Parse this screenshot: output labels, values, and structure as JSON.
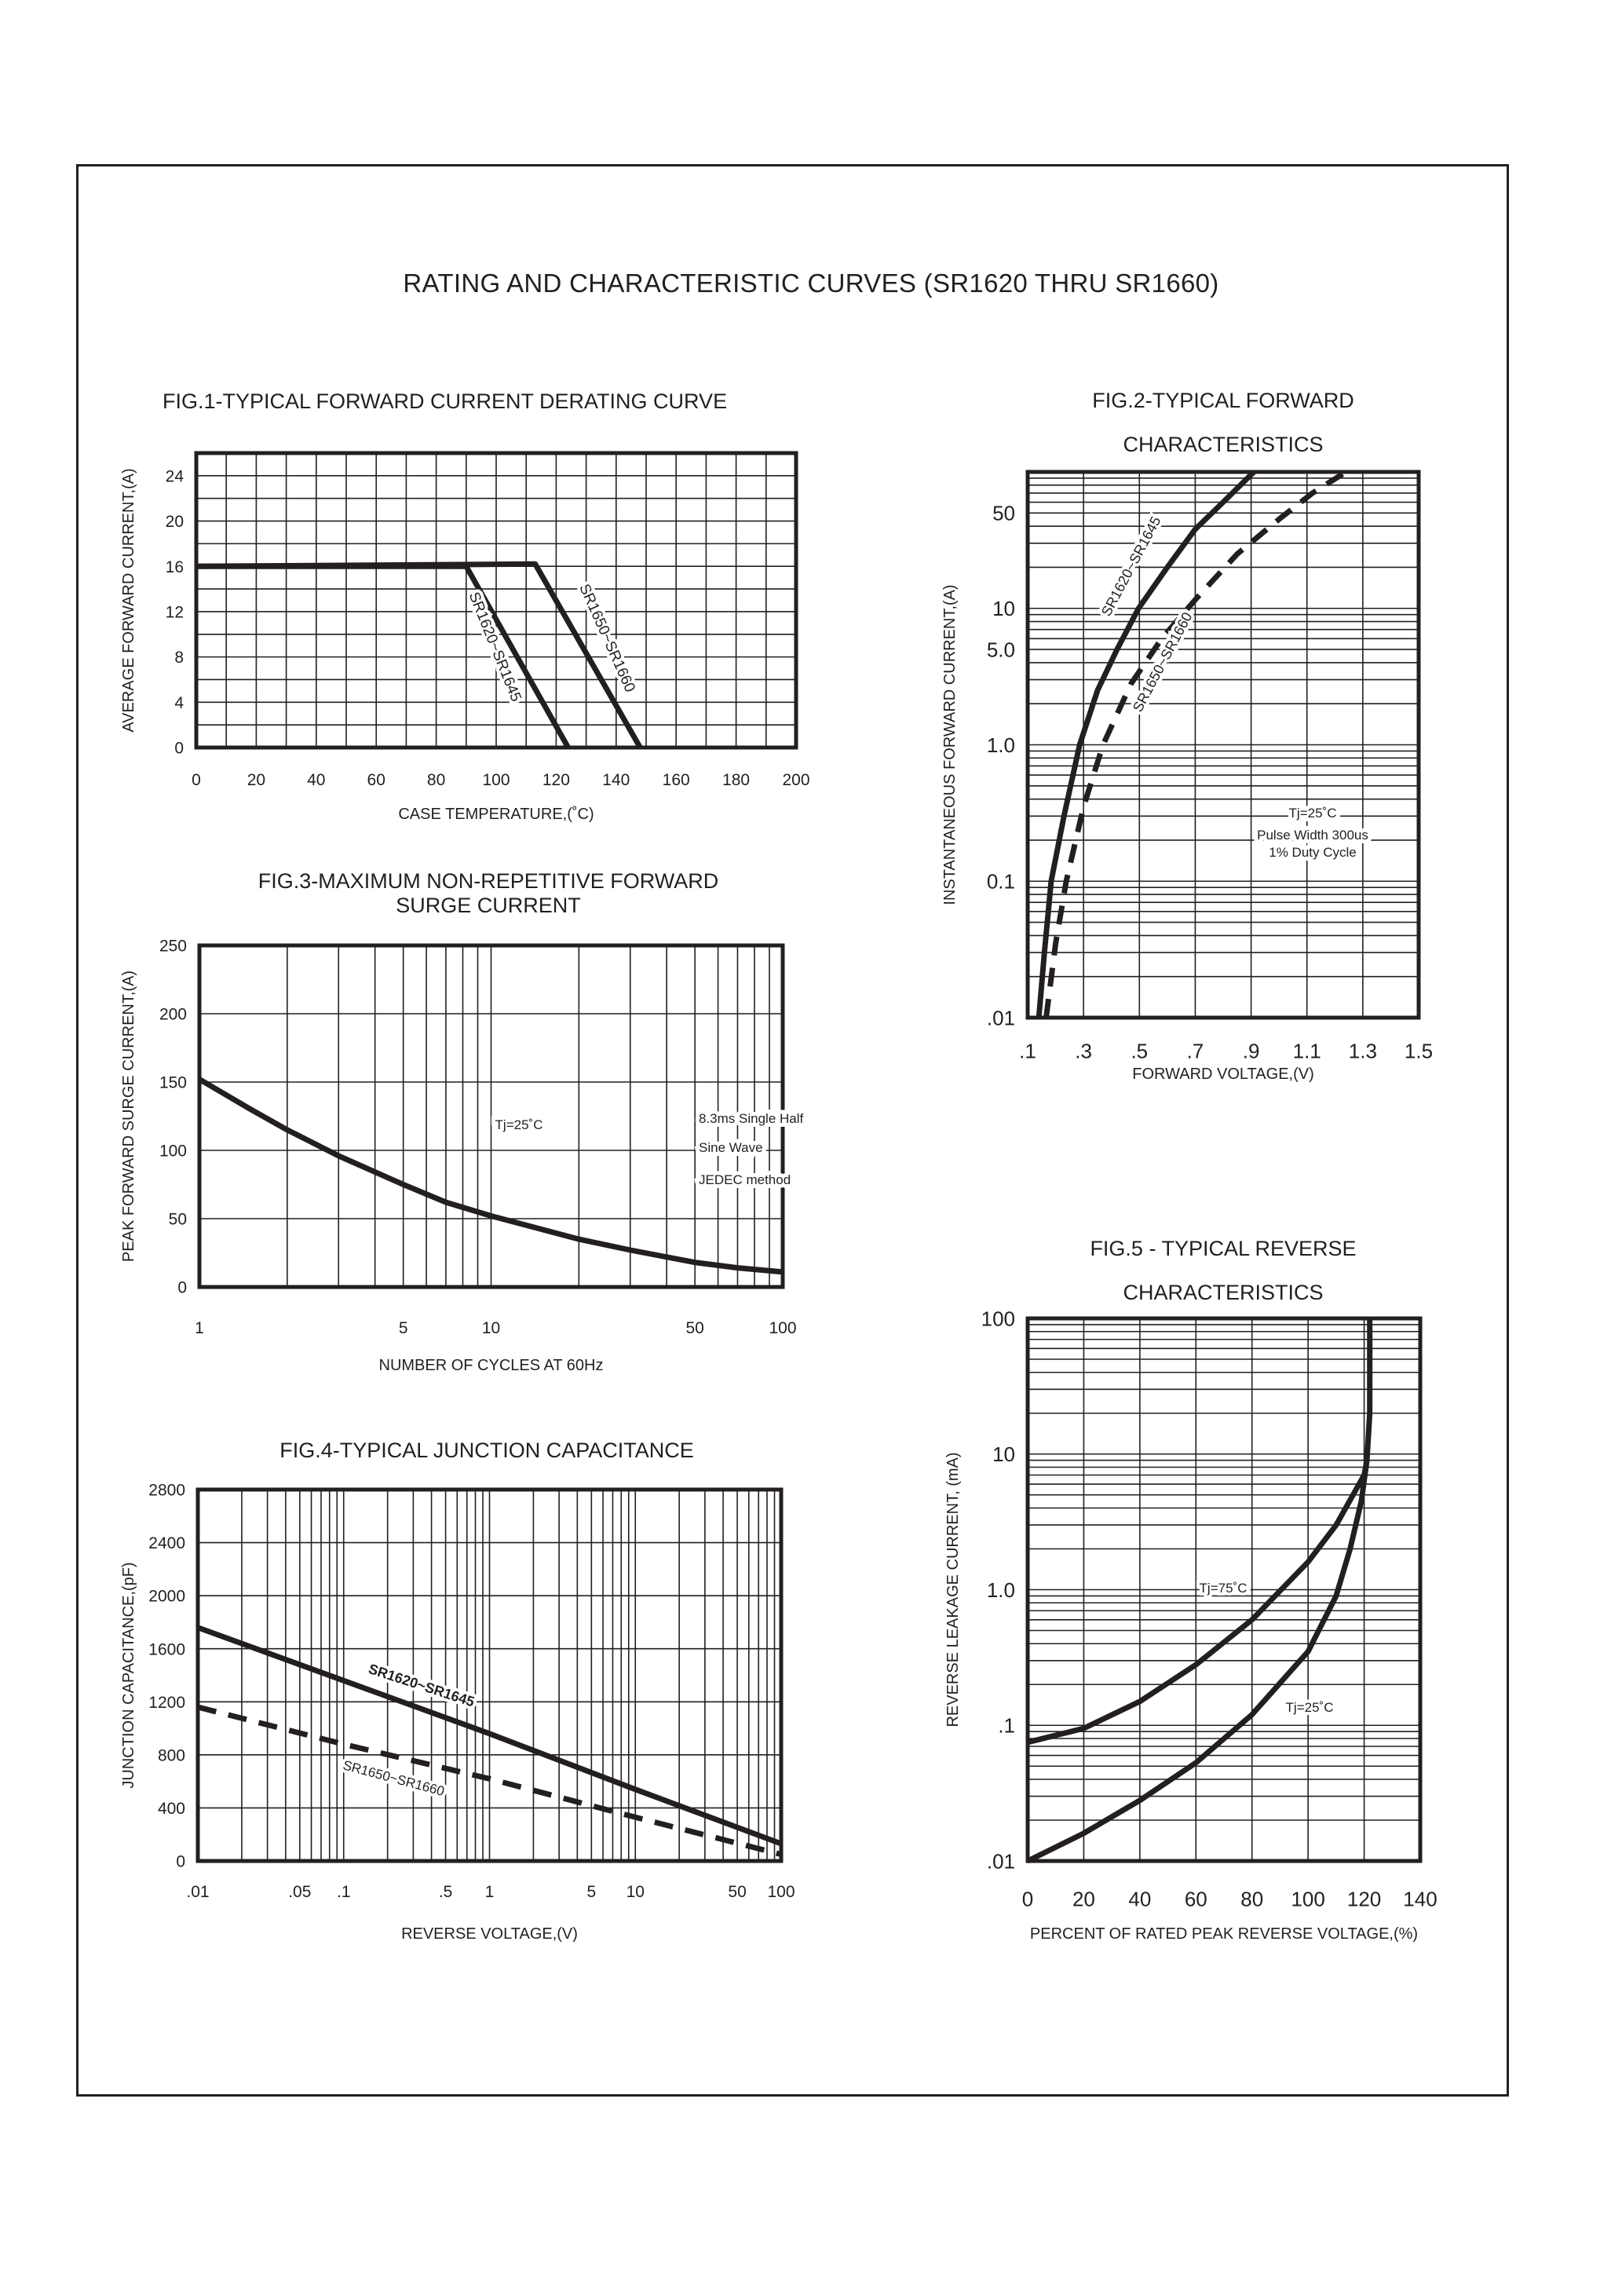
{
  "page_title": "RATING AND CHARACTERISTIC CURVES (SR1620 THRU SR1660)",
  "chart_data": [
    {
      "type": "line",
      "title": [
        "FIG.1-TYPICAL FORWARD CURRENT DERATING CURVE"
      ],
      "xlabel": "CASE  TEMPERATURE,(˚C)",
      "ylabel": "AVERAGE FORWARD CURRENT,(A)",
      "xscale": "linear",
      "yscale": "linear",
      "xlim": [
        0,
        200
      ],
      "ylim": [
        0,
        26
      ],
      "grid": true,
      "x_ticks": [
        0,
        20,
        40,
        60,
        80,
        100,
        120,
        140,
        160,
        180,
        200
      ],
      "x_tick_labels": [
        "0",
        "20",
        "40",
        "60",
        "80",
        "100",
        "120",
        "140",
        "160",
        "180",
        "200"
      ],
      "y_ticks": [
        0,
        4,
        8,
        12,
        16,
        20,
        24
      ],
      "y_tick_labels": [
        "0",
        "4",
        "8",
        "12",
        "16",
        "20",
        "24"
      ],
      "series": [
        {
          "name": "SR1620~SR1645",
          "style": "solid",
          "points": [
            [
              0,
              16
            ],
            [
              90,
              16
            ],
            [
              124,
              0
            ]
          ]
        },
        {
          "name": "SR1650~SR1660",
          "style": "solid",
          "points": [
            [
              0,
              16
            ],
            [
              113,
              16.2
            ],
            [
              148,
              0
            ]
          ]
        }
      ],
      "annotations": []
    },
    {
      "type": "line",
      "title": [
        "FIG.2-TYPICAL FORWARD",
        "CHARACTERISTICS"
      ],
      "xlabel": "FORWARD VOLTAGE,(V)",
      "ylabel": "INSTANTANEOUS FORWARD CURRENT,(A)",
      "xscale": "linear",
      "yscale": "log",
      "xlim": [
        0.1,
        1.5
      ],
      "ylim": [
        0.01,
        100
      ],
      "grid": true,
      "x_ticks": [
        0.1,
        0.3,
        0.5,
        0.7,
        0.9,
        1.1,
        1.3,
        1.5
      ],
      "x_tick_labels": [
        ".1",
        ".3",
        ".5",
        ".7",
        ".9",
        "1.1",
        "1.3",
        "1.5"
      ],
      "y_ticks": [
        0.01,
        0.1,
        1,
        5,
        10,
        50
      ],
      "y_tick_labels": [
        ".01",
        "0.1",
        "1.0",
        "5.0",
        "10",
        "50"
      ],
      "series": [
        {
          "name": "SR1620~SR1645",
          "style": "solid",
          "points": [
            [
              0.14,
              0.01
            ],
            [
              0.16,
              0.03
            ],
            [
              0.184,
              0.1
            ],
            [
              0.23,
              0.3
            ],
            [
              0.286,
              1
            ],
            [
              0.35,
              2.5
            ],
            [
              0.42,
              5
            ],
            [
              0.497,
              10
            ],
            [
              0.6,
              20
            ],
            [
              0.7,
              38
            ],
            [
              0.8,
              60
            ],
            [
              0.91,
              100
            ]
          ]
        },
        {
          "name": "SR1650~SR1660",
          "style": "dashed",
          "points": [
            [
              0.166,
              0.01
            ],
            [
              0.2,
              0.035
            ],
            [
              0.238,
              0.1
            ],
            [
              0.3,
              0.35
            ],
            [
              0.37,
              1
            ],
            [
              0.47,
              2.8
            ],
            [
              0.58,
              6
            ],
            [
              0.707,
              12
            ],
            [
              0.85,
              25
            ],
            [
              1.0,
              45
            ],
            [
              1.12,
              70
            ],
            [
              1.24,
              100
            ]
          ]
        }
      ],
      "annotations": [
        "Tj=25˚C",
        "Pulse Width 300us",
        "1% Duty Cycle"
      ]
    },
    {
      "type": "line",
      "title": [
        "FIG.3-MAXIMUM NON-REPETITIVE FORWARD",
        "SURGE CURRENT"
      ],
      "xlabel": "NUMBER OF CYCLES AT 60Hz",
      "ylabel": "PEAK FORWARD SURGE CURRENT,(A)",
      "xscale": "log",
      "yscale": "linear",
      "xlim": [
        1,
        100
      ],
      "ylim": [
        0,
        250
      ],
      "grid": true,
      "x_ticks": [
        1,
        5,
        10,
        50,
        100
      ],
      "x_tick_labels": [
        "1",
        "5",
        "10",
        "50",
        "100"
      ],
      "y_ticks": [
        0,
        50,
        100,
        150,
        200,
        250
      ],
      "y_tick_labels": [
        "0",
        "50",
        "100",
        "150",
        "200",
        "250"
      ],
      "series": [
        {
          "style": "solid",
          "points": [
            [
              1,
              152
            ],
            [
              1.5,
              130
            ],
            [
              2,
              115
            ],
            [
              3,
              96
            ],
            [
              5,
              75
            ],
            [
              7,
              62
            ],
            [
              10,
              52
            ],
            [
              20,
              35
            ],
            [
              30,
              27
            ],
            [
              50,
              18
            ],
            [
              70,
              14
            ],
            [
              100,
              11
            ]
          ]
        }
      ],
      "annotations": [
        "Tj=25˚C",
        "8.3ms Single Half",
        "Sine Wave",
        "JEDEC method"
      ]
    },
    {
      "type": "line",
      "title": [
        "FIG.4-TYPICAL JUNCTION CAPACITANCE"
      ],
      "xlabel": "REVERSE VOLTAGE,(V)",
      "ylabel": "JUNCTION CAPACITANCE,(pF)",
      "xscale": "log",
      "yscale": "linear",
      "xlim": [
        0.01,
        100
      ],
      "ylim": [
        0,
        2800
      ],
      "grid": true,
      "x_ticks": [
        0.01,
        0.05,
        0.1,
        0.5,
        1,
        5,
        10,
        50,
        100
      ],
      "x_tick_labels": [
        ".01",
        ".05",
        ".1",
        ".5",
        "1",
        "5",
        "10",
        "50",
        "100"
      ],
      "y_ticks": [
        0,
        400,
        800,
        1200,
        1600,
        2000,
        2400,
        2800
      ],
      "y_tick_labels": [
        "0",
        "400",
        "800",
        "1200",
        "1600",
        "2000",
        "2400",
        "2800"
      ],
      "series": [
        {
          "name": "SR1620~SR1645",
          "style": "solid",
          "points": [
            [
              0.01,
              1760
            ],
            [
              0.1,
              1360
            ],
            [
              1,
              960
            ],
            [
              10,
              540
            ],
            [
              100,
              130
            ]
          ]
        },
        {
          "name": "SR1650~SR1660",
          "style": "dashed",
          "points": [
            [
              0.01,
              1160
            ],
            [
              0.1,
              880
            ],
            [
              1,
              620
            ],
            [
              10,
              330
            ],
            [
              100,
              50
            ]
          ]
        }
      ],
      "annotations": []
    },
    {
      "type": "line",
      "title": [
        "FIG.5 - TYPICAL REVERSE",
        "CHARACTERISTICS"
      ],
      "xlabel": "PERCENT OF RATED PEAK REVERSE VOLTAGE,(%)",
      "ylabel": "REVERSE LEAKAGE CURRENT, (mA)",
      "xscale": "linear",
      "yscale": "log",
      "xlim": [
        0,
        140
      ],
      "ylim": [
        0.01,
        100
      ],
      "grid": true,
      "x_ticks": [
        0,
        20,
        40,
        60,
        80,
        100,
        120,
        140
      ],
      "x_tick_labels": [
        "0",
        "20",
        "40",
        "60",
        "80",
        "100",
        "120",
        "140"
      ],
      "y_ticks": [
        0.01,
        0.1,
        1,
        10,
        100
      ],
      "y_tick_labels": [
        ".01",
        ".1",
        "1.0",
        "10",
        "100"
      ],
      "series": [
        {
          "name": "Tj=75˚C",
          "style": "solid",
          "points": [
            [
              0,
              0.075
            ],
            [
              20,
              0.095
            ],
            [
              40,
              0.15
            ],
            [
              60,
              0.28
            ],
            [
              80,
              0.6
            ],
            [
              100,
              1.6
            ],
            [
              110,
              3
            ],
            [
              120,
              7
            ],
            [
              121,
              9
            ],
            [
              122,
              20
            ],
            [
              122,
              100
            ]
          ]
        },
        {
          "name": "Tj=25˚C",
          "style": "solid",
          "points": [
            [
              0,
              0.01
            ],
            [
              20,
              0.016
            ],
            [
              40,
              0.028
            ],
            [
              60,
              0.053
            ],
            [
              80,
              0.12
            ],
            [
              100,
              0.35
            ],
            [
              110,
              0.9
            ],
            [
              115,
              2
            ],
            [
              119,
              4.5
            ],
            [
              121,
              9
            ]
          ]
        }
      ],
      "annotations": []
    }
  ]
}
